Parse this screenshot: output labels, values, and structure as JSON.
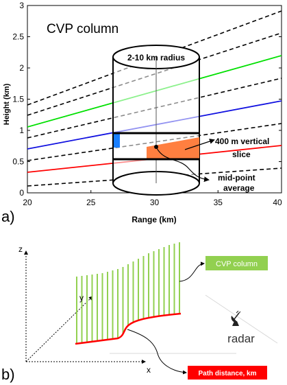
{
  "panel_a": {
    "panel_label": "a)",
    "title": "CVP column",
    "ylabel": "Height (km)",
    "xlabel": "Range (km)",
    "x_ticks": [
      "20",
      "25",
      "30",
      "35",
      "40"
    ],
    "y_ticks": [
      "0",
      "0.5",
      "1",
      "1.5",
      "2",
      "2.5",
      "3"
    ],
    "annotations": {
      "radius": "2-10 km radius",
      "slice_line1": "400 m vertical",
      "slice_line2": "slice",
      "midpoint_line1": "mid-point",
      "midpoint_line2": "average"
    },
    "colors": {
      "green": "#00e000",
      "blue": "#1010e0",
      "red": "#ff0000",
      "orange": "#ff7f40",
      "blue_fill": "#1a7fff"
    }
  },
  "panel_b": {
    "panel_label": "b)",
    "axis_z": "z",
    "axis_y": "y",
    "axis_x": "x",
    "cvp_label": "CVP column",
    "radar_label": "radar",
    "path_label": "Path distance, km",
    "colors": {
      "green": "#92d050",
      "red": "#ff0000"
    },
    "icons": [
      "radar-dish-icon"
    ]
  }
}
